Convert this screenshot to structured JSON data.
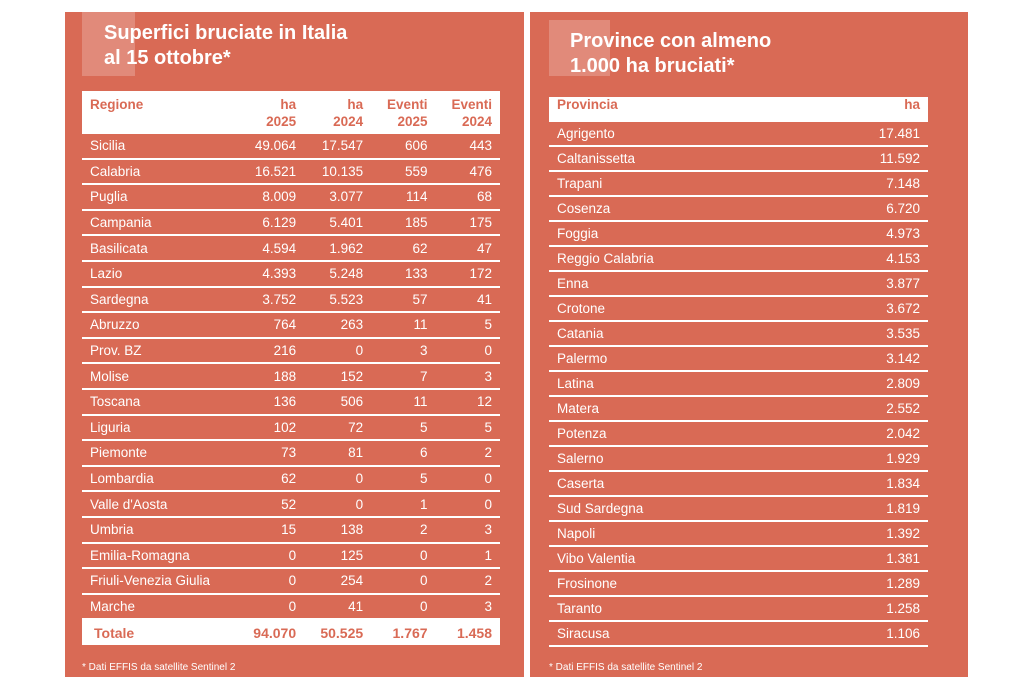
{
  "left": {
    "title_line1": "Superfici bruciate in Italia",
    "title_line2": "al 15 ottobre*",
    "headers": [
      [
        "Regione",
        ""
      ],
      [
        "ha",
        "2025"
      ],
      [
        "ha",
        "2024"
      ],
      [
        "Eventi",
        "2025"
      ],
      [
        "Eventi",
        "2024"
      ]
    ],
    "rows": [
      [
        "Sicilia",
        "49.064",
        "17.547",
        "606",
        "443"
      ],
      [
        "Calabria",
        "16.521",
        "10.135",
        "559",
        "476"
      ],
      [
        "Puglia",
        "8.009",
        "3.077",
        "114",
        "68"
      ],
      [
        "Campania",
        "6.129",
        "5.401",
        "185",
        "175"
      ],
      [
        "Basilicata",
        "4.594",
        "1.962",
        "62",
        "47"
      ],
      [
        "Lazio",
        "4.393",
        "5.248",
        "133",
        "172"
      ],
      [
        "Sardegna",
        "3.752",
        "5.523",
        "57",
        "41"
      ],
      [
        "Abruzzo",
        "764",
        "263",
        "11",
        "5"
      ],
      [
        "Prov. BZ",
        "216",
        "0",
        "3",
        "0"
      ],
      [
        "Molise",
        "188",
        "152",
        "7",
        "3"
      ],
      [
        "Toscana",
        "136",
        "506",
        "11",
        "12"
      ],
      [
        "Liguria",
        "102",
        "72",
        "5",
        "5"
      ],
      [
        "Piemonte",
        "73",
        "81",
        "6",
        "2"
      ],
      [
        "Lombardia",
        "62",
        "0",
        "5",
        "0"
      ],
      [
        "Valle d'Aosta",
        "52",
        "0",
        "1",
        "0"
      ],
      [
        "Umbria",
        "15",
        "138",
        "2",
        "3"
      ],
      [
        "Emilia-Romagna",
        "0",
        "125",
        "0",
        "1"
      ],
      [
        "Friuli-Venezia Giulia",
        "0",
        "254",
        "0",
        "2"
      ],
      [
        "Marche",
        "0",
        "41",
        "0",
        "3"
      ]
    ],
    "total": [
      "Totale",
      "94.070",
      "50.525",
      "1.767",
      "1.458"
    ],
    "footnote": "* Dati EFFIS da satellite Sentinel 2"
  },
  "right": {
    "title_line1": "Province con almeno",
    "title_line2": "1.000 ha bruciati*",
    "headers": [
      "Provincia",
      "ha"
    ],
    "rows": [
      [
        "Agrigento",
        "17.481"
      ],
      [
        "Caltanissetta",
        "11.592"
      ],
      [
        "Trapani",
        "7.148"
      ],
      [
        "Cosenza",
        "6.720"
      ],
      [
        "Foggia",
        "4.973"
      ],
      [
        "Reggio Calabria",
        "4.153"
      ],
      [
        "Enna",
        "3.877"
      ],
      [
        "Crotone",
        "3.672"
      ],
      [
        "Catania",
        "3.535"
      ],
      [
        "Palermo",
        "3.142"
      ],
      [
        "Latina",
        "2.809"
      ],
      [
        "Matera",
        "2.552"
      ],
      [
        "Potenza",
        "2.042"
      ],
      [
        "Salerno",
        "1.929"
      ],
      [
        "Caserta",
        "1.834"
      ],
      [
        "Sud Sardegna",
        "1.819"
      ],
      [
        "Napoli",
        "1.392"
      ],
      [
        "Vibo Valentia",
        "1.381"
      ],
      [
        "Frosinone",
        "1.289"
      ],
      [
        "Taranto",
        "1.258"
      ],
      [
        "Siracusa",
        "1.106"
      ]
    ],
    "footnote": "* Dati EFFIS da satellite Sentinel 2"
  },
  "colors": {
    "panel": "#D96A55",
    "header_bg": "#FFFFFF"
  }
}
